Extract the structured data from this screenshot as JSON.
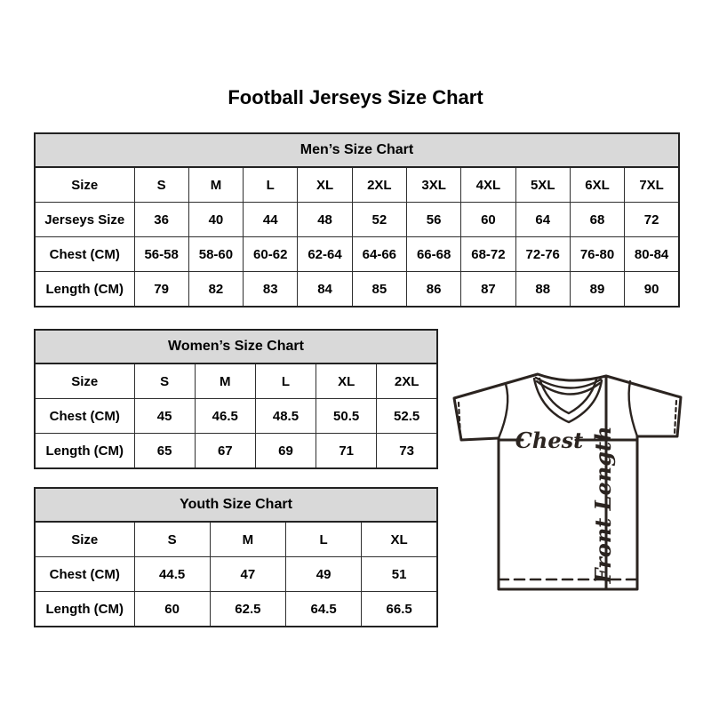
{
  "title": "Football Jerseys Size Chart",
  "tables": {
    "mens": {
      "title": "Men’s Size Chart",
      "rows": [
        {
          "label": "Size",
          "values": [
            "S",
            "M",
            "L",
            "XL",
            "2XL",
            "3XL",
            "4XL",
            "5XL",
            "6XL",
            "7XL"
          ]
        },
        {
          "label": "Jerseys Size",
          "values": [
            "36",
            "40",
            "44",
            "48",
            "52",
            "56",
            "60",
            "64",
            "68",
            "72"
          ]
        },
        {
          "label": "Chest (CM)",
          "values": [
            "56-58",
            "58-60",
            "60-62",
            "62-64",
            "64-66",
            "66-68",
            "68-72",
            "72-76",
            "76-80",
            "80-84"
          ]
        },
        {
          "label": "Length (CM)",
          "values": [
            "79",
            "82",
            "83",
            "84",
            "85",
            "86",
            "87",
            "88",
            "89",
            "90"
          ]
        }
      ]
    },
    "womens": {
      "title": "Women’s Size Chart",
      "rows": [
        {
          "label": "Size",
          "values": [
            "S",
            "M",
            "L",
            "XL",
            "2XL"
          ]
        },
        {
          "label": "Chest (CM)",
          "values": [
            "45",
            "46.5",
            "48.5",
            "50.5",
            "52.5"
          ]
        },
        {
          "label": "Length (CM)",
          "values": [
            "65",
            "67",
            "69",
            "71",
            "73"
          ]
        }
      ]
    },
    "youth": {
      "title": "Youth Size Chart",
      "rows": [
        {
          "label": "Size",
          "values": [
            "S",
            "M",
            "L",
            "XL"
          ]
        },
        {
          "label": "Chest (CM)",
          "values": [
            "44.5",
            "47",
            "49",
            "51"
          ]
        },
        {
          "label": "Length (CM)",
          "values": [
            "60",
            "62.5",
            "64.5",
            "66.5"
          ]
        }
      ]
    }
  },
  "diagram": {
    "chest_label": "Chest",
    "front_length_label": "Front Length"
  },
  "colors": {
    "table_header_bg": "#d9d9d9",
    "table_border": "#2f2f2f",
    "text": "#000000",
    "jersey_line": "#2b2420"
  }
}
